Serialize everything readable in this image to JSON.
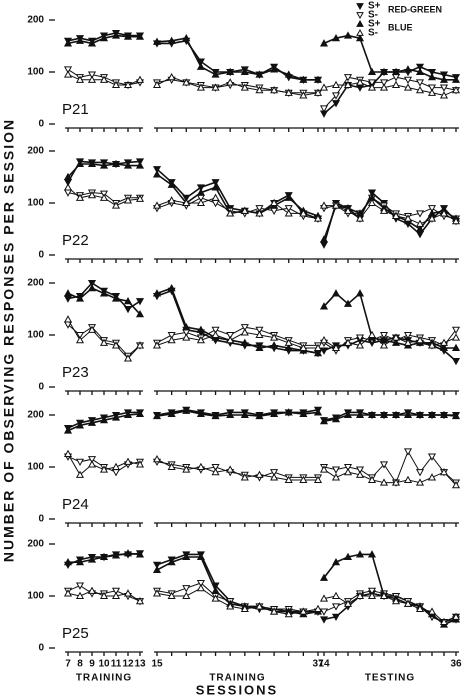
{
  "y_label": "NUMBER OF OBSERVING RESPONSES PER SESSION",
  "x_label": "SESSIONS",
  "legend_groups": [
    "RED-GREEN",
    "BLUE"
  ],
  "sections": [
    {
      "label": "TRAINING",
      "x": [
        7,
        8,
        9,
        10,
        11,
        12,
        13
      ],
      "xticks": [
        7,
        8,
        9,
        10,
        11,
        12,
        13
      ]
    },
    {
      "label": "TRAINING",
      "x": [
        15,
        17,
        19,
        21,
        23,
        25,
        27,
        29,
        31,
        33,
        35,
        37
      ],
      "xticks": [
        15,
        37
      ]
    },
    {
      "label": "TESTING",
      "x": [
        14,
        16,
        18,
        20,
        22,
        24,
        26,
        28,
        30,
        32,
        34,
        36
      ],
      "xticks": [
        14,
        36
      ]
    }
  ],
  "chart_data": [
    {
      "type": "line",
      "title": "P21",
      "ylim": [
        0,
        220
      ],
      "yticks": [
        0,
        100,
        200
      ],
      "series": [
        {
          "name": "S+",
          "color": "#111",
          "marker": "down",
          "filled": true,
          "values": [
            [
              160,
              165,
              160,
              170,
              175,
              170,
              170
            ],
            [
              155,
              155,
              160,
              120,
              100,
              100,
              105,
              95,
              110,
              90,
              85,
              85
            ],
            [
              20,
              40,
              75,
              70,
              75,
              100,
              100,
              100,
              110,
              100,
              95,
              90
            ]
          ]
        },
        {
          "name": "S-",
          "color": "#111",
          "marker": "down",
          "filled": false,
          "values": [
            [
              105,
              90,
              95,
              90,
              80,
              75,
              80
            ],
            [
              80,
              85,
              80,
              75,
              70,
              75,
              75,
              70,
              65,
              60,
              60,
              60
            ],
            [
              30,
              55,
              90,
              85,
              80,
              80,
              90,
              85,
              80,
              70,
              70,
              65
            ]
          ]
        },
        {
          "name": "S+",
          "color": "#111",
          "marker": "up",
          "filled": true,
          "values": [
            [
              155,
              160,
              155,
              165,
              170,
              168,
              168
            ],
            [
              158,
              160,
              165,
              110,
              95,
              100,
              100,
              95,
              105,
              95,
              85,
              85
            ],
            [
              155,
              165,
              170,
              165,
              100,
              100,
              100,
              105,
              100,
              90,
              85,
              85
            ]
          ]
        },
        {
          "name": "S-",
          "color": "#111",
          "marker": "up",
          "filled": false,
          "values": [
            [
              95,
              85,
              85,
              85,
              75,
              75,
              85
            ],
            [
              75,
              90,
              80,
              70,
              70,
              80,
              70,
              65,
              65,
              60,
              55,
              60
            ],
            [
              70,
              75,
              75,
              80,
              70,
              70,
              75,
              70,
              65,
              60,
              55,
              65
            ]
          ]
        }
      ]
    },
    {
      "type": "line",
      "title": "P22",
      "ylim": [
        0,
        220
      ],
      "yticks": [
        0,
        100,
        200
      ],
      "series": [
        {
          "name": "S+",
          "color": "#111",
          "marker": "down",
          "filled": true,
          "values": [
            [
              140,
              180,
              178,
              178,
              175,
              178,
              180
            ],
            [
              165,
              140,
              110,
              130,
              140,
              90,
              85,
              80,
              100,
              115,
              80,
              70
            ],
            [
              20,
              100,
              90,
              70,
              120,
              100,
              70,
              60,
              40,
              70,
              90,
              65
            ]
          ]
        },
        {
          "name": "S-",
          "color": "#111",
          "marker": "down",
          "filled": false,
          "values": [
            [
              120,
              115,
              120,
              118,
              100,
              110,
              110
            ],
            [
              90,
              100,
              95,
              110,
              100,
              85,
              80,
              90,
              85,
              90,
              75,
              70
            ],
            [
              90,
              95,
              80,
              80,
              110,
              95,
              80,
              75,
              80,
              90,
              75,
              70
            ]
          ]
        },
        {
          "name": "S+",
          "color": "#111",
          "marker": "up",
          "filled": true,
          "values": [
            [
              150,
              175,
              175,
              172,
              175,
              172,
              172
            ],
            [
              155,
              135,
              100,
              120,
              130,
              80,
              85,
              80,
              95,
              110,
              85,
              75
            ],
            [
              30,
              95,
              90,
              80,
              110,
              90,
              75,
              65,
              50,
              80,
              85,
              70
            ]
          ]
        },
        {
          "name": "S-",
          "color": "#111",
          "marker": "up",
          "filled": false,
          "values": [
            [
              130,
              110,
              115,
              110,
              95,
              105,
              108
            ],
            [
              95,
              105,
              100,
              100,
              110,
              80,
              85,
              80,
              100,
              80,
              80,
              70
            ],
            [
              95,
              95,
              85,
              70,
              100,
              85,
              75,
              70,
              60,
              70,
              80,
              65
            ]
          ]
        }
      ]
    },
    {
      "type": "line",
      "title": "P23",
      "ylim": [
        0,
        220
      ],
      "yticks": [
        0,
        100,
        200
      ],
      "series": [
        {
          "name": "S+",
          "color": "#111",
          "marker": "down",
          "filled": true,
          "values": [
            [
              170,
              175,
              200,
              185,
              175,
              150,
              165
            ],
            [
              175,
              185,
              110,
              105,
              90,
              85,
              80,
              80,
              75,
              70,
              70,
              65
            ],
            [
              70,
              80,
              80,
              90,
              85,
              90,
              95,
              90,
              85,
              80,
              70,
              50
            ]
          ]
        },
        {
          "name": "S-",
          "color": "#111",
          "marker": "down",
          "filled": false,
          "values": [
            [
              120,
              100,
              115,
              90,
              85,
              60,
              80
            ],
            [
              85,
              100,
              105,
              95,
              110,
              100,
              115,
              110,
              100,
              90,
              80,
              80
            ],
            [
              85,
              70,
              90,
              95,
              90,
              100,
              90,
              100,
              95,
              90,
              80,
              110
            ]
          ]
        },
        {
          "name": "S+",
          "color": "#111",
          "marker": "up",
          "filled": true,
          "values": [
            [
              180,
              170,
              190,
              180,
              170,
              165,
              140
            ],
            [
              180,
              190,
              115,
              110,
              95,
              90,
              85,
              75,
              80,
              75,
              70,
              65
            ],
            [
              155,
              180,
              160,
              180,
              95,
              90,
              85,
              80,
              85,
              85,
              75,
              75
            ]
          ]
        },
        {
          "name": "S-",
          "color": "#111",
          "marker": "up",
          "filled": false,
          "values": [
            [
              130,
              90,
              110,
              85,
              80,
              55,
              80
            ],
            [
              80,
              90,
              95,
              90,
              100,
              90,
              105,
              100,
              95,
              85,
              75,
              75
            ],
            [
              90,
              75,
              85,
              80,
              100,
              80,
              95,
              85,
              90,
              80,
              85,
              95
            ]
          ]
        }
      ]
    },
    {
      "type": "line",
      "title": "P24",
      "ylim": [
        0,
        220
      ],
      "yticks": [
        0,
        100,
        200
      ],
      "series": [
        {
          "name": "S+",
          "color": "#111",
          "marker": "down",
          "filled": true,
          "values": [
            [
              175,
              185,
              190,
              195,
              200,
              205,
              205
            ],
            [
              200,
              205,
              210,
              205,
              200,
              205,
              205,
              200,
              205,
              205,
              205,
              210
            ],
            [
              190,
              195,
              205,
              205,
              200,
              200,
              200,
              205,
              200,
              200,
              200,
              200
            ]
          ]
        },
        {
          "name": "S-",
          "color": "#111",
          "marker": "down",
          "filled": false,
          "values": [
            [
              120,
              110,
              115,
              100,
              90,
              105,
              110
            ],
            [
              110,
              105,
              100,
              95,
              100,
              90,
              85,
              80,
              90,
              80,
              80,
              80
            ],
            [
              100,
              95,
              100,
              95,
              80,
              105,
              70,
              130,
              90,
              120,
              90,
              70
            ]
          ]
        },
        {
          "name": "S+",
          "color": "#111",
          "marker": "up",
          "filled": true,
          "values": [
            [
              170,
              180,
              185,
              190,
              195,
              200,
              202
            ],
            [
              198,
              202,
              208,
              202,
              198,
              200,
              200,
              198,
              202,
              205,
              202,
              205
            ],
            [
              188,
              192,
              200,
              200,
              200,
              200,
              200,
              200,
              200,
              200,
              200,
              198
            ]
          ]
        },
        {
          "name": "S-",
          "color": "#111",
          "marker": "up",
          "filled": false,
          "values": [
            [
              125,
              85,
              105,
              95,
              100,
              110,
              105
            ],
            [
              115,
              100,
              95,
              100,
              90,
              95,
              80,
              85,
              80,
              75,
              75,
              75
            ],
            [
              95,
              80,
              90,
              85,
              75,
              70,
              70,
              75,
              70,
              80,
              90,
              65
            ]
          ]
        }
      ]
    },
    {
      "type": "line",
      "title": "P25",
      "ylim": [
        0,
        220
      ],
      "yticks": [
        0,
        100,
        200
      ],
      "series": [
        {
          "name": "S+",
          "color": "#111",
          "marker": "down",
          "filled": true,
          "values": [
            [
              160,
              170,
              175,
              175,
              180,
              180,
              182
            ],
            [
              160,
              170,
              180,
              180,
              120,
              90,
              80,
              75,
              75,
              70,
              70,
              70
            ],
            [
              55,
              60,
              80,
              100,
              105,
              100,
              100,
              90,
              80,
              60,
              50,
              60
            ]
          ]
        },
        {
          "name": "S-",
          "color": "#111",
          "marker": "down",
          "filled": false,
          "values": [
            [
              110,
              120,
              105,
              105,
              110,
              100,
              90
            ],
            [
              110,
              105,
              115,
              125,
              100,
              90,
              80,
              80,
              75,
              75,
              70,
              70
            ],
            [
              70,
              80,
              90,
              105,
              110,
              105,
              100,
              90,
              80,
              60,
              50,
              55
            ]
          ]
        },
        {
          "name": "S+",
          "color": "#111",
          "marker": "up",
          "filled": true,
          "values": [
            [
              165,
              165,
              170,
              175,
              178,
              182,
              180
            ],
            [
              150,
              165,
              175,
              175,
              110,
              85,
              80,
              80,
              70,
              70,
              65,
              70
            ],
            [
              135,
              165,
              175,
              180,
              180,
              100,
              95,
              85,
              80,
              65,
              45,
              55
            ]
          ]
        },
        {
          "name": "S-",
          "color": "#111",
          "marker": "up",
          "filled": false,
          "values": [
            [
              105,
              100,
              110,
              100,
              100,
              105,
              90
            ],
            [
              105,
              100,
              100,
              115,
              95,
              80,
              75,
              80,
              70,
              65,
              70,
              75
            ],
            [
              95,
              100,
              85,
              100,
              100,
              100,
              90,
              85,
              75,
              70,
              50,
              60
            ]
          ]
        }
      ]
    }
  ]
}
